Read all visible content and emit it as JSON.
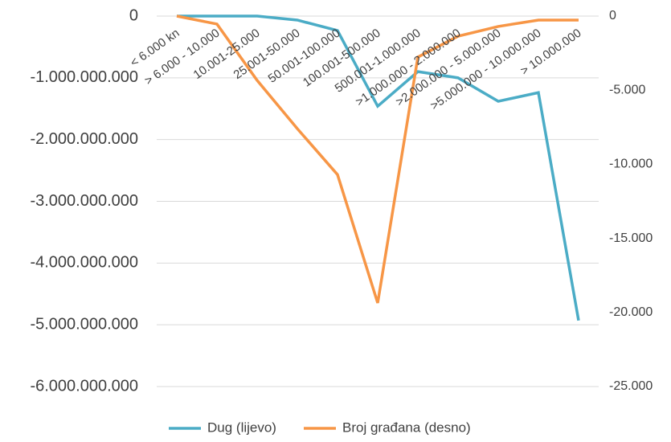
{
  "chart_data": {
    "type": "line",
    "categories": [
      "< 6.000 kn",
      "> 6.000 - 10.000",
      "10.001-25.000",
      "25.001-50.000",
      "50.001-100.000",
      "100.001-500.000",
      "500.001-1.000.000",
      ">1.000.000 - 2.000.000",
      ">2.000.000 - 5.000.000",
      ">5.000.000 - 10.000.000",
      "> 10.000.000"
    ],
    "series": [
      {
        "name": "Dug (lijevo)",
        "color": "#4bacc6",
        "values": [
          0,
          0,
          0,
          -65000000,
          -235000000,
          -1460000000,
          -900000000,
          -1000000000,
          -1380000000,
          -1240000000,
          -4930000000
        ]
      },
      {
        "name": "Broj građana (desno)",
        "color": "#f79646",
        "axis": "y2",
        "values": [
          0,
          -540,
          -4340,
          -7600,
          -10700,
          -19360,
          -2770,
          -1360,
          -700,
          -270,
          -270
        ]
      }
    ],
    "ylim": [
      -6000000000,
      0
    ],
    "yticks": [
      0,
      {
        "value": -1000000000,
        "label": "-1.000.000.000"
      },
      {
        "value": -2000000000,
        "label": "-2.000.000.000"
      },
      {
        "value": -3000000000,
        "label": "-3.000.000.000"
      },
      {
        "value": -4000000000,
        "label": "-4.000.000.000"
      },
      {
        "value": -5000000000,
        "label": "-5.000.000.000"
      },
      {
        "value": -6000000000,
        "label": "-6.000.000.000"
      }
    ],
    "y2lim": [
      -25000,
      0
    ],
    "y2ticks": [
      0,
      {
        "value": -5000,
        "label": "-5.000"
      },
      {
        "value": -10000,
        "label": "-10.000"
      },
      {
        "value": -15000,
        "label": "-15.000"
      },
      {
        "value": -20000,
        "label": "-20.000"
      },
      {
        "value": -25000,
        "label": "-25.000"
      }
    ],
    "grid": true,
    "legend": "bottom"
  }
}
